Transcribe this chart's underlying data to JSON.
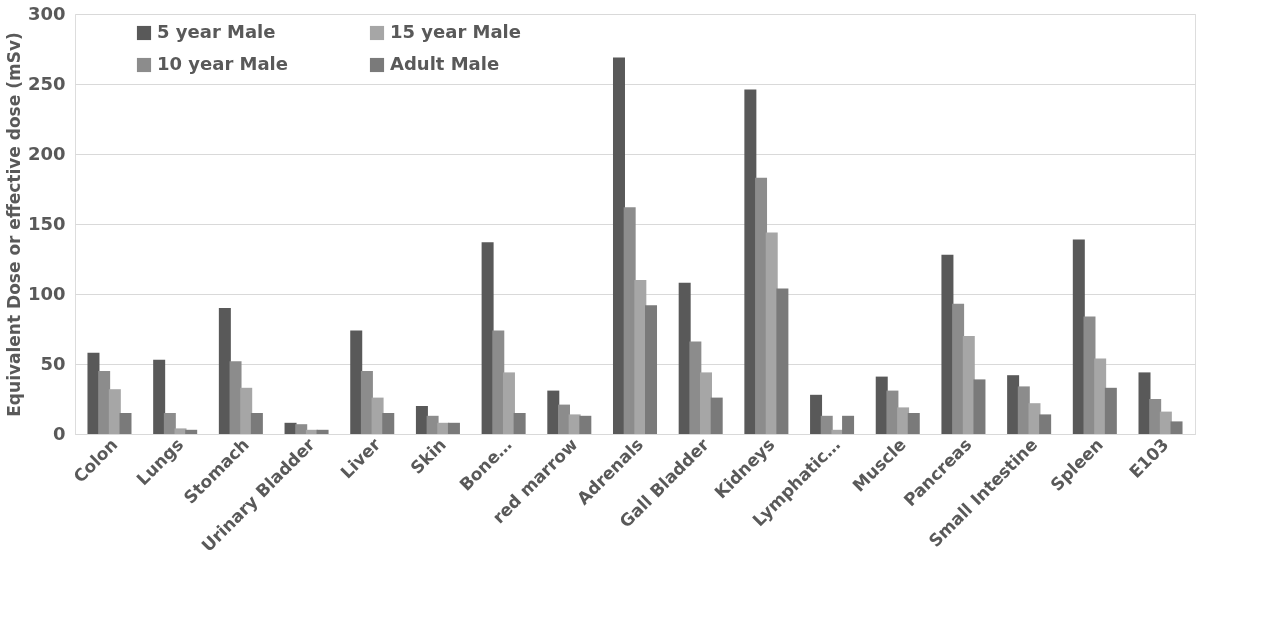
{
  "chart_data": {
    "type": "bar",
    "ylabel": "Equivalent Dose or effective dose (mSv)",
    "categories": [
      "Colon",
      "Lungs",
      "Stomach",
      "Urinary Bladder",
      "Liver",
      "Skin",
      "Bone…",
      "red marrow",
      "Adrenals",
      "Gall Bladder",
      "Kidneys",
      "Lymphatic…",
      "Muscle",
      "Pancreas",
      "Small Intestine",
      "Spleen",
      "E103"
    ],
    "series": [
      {
        "name": "5 year Male",
        "color": "#595959",
        "values": [
          58,
          53,
          90,
          8,
          74,
          20,
          137,
          31,
          269,
          108,
          246,
          28,
          41,
          128,
          42,
          139,
          44
        ]
      },
      {
        "name": "10 year Male",
        "color": "#8c8c8c",
        "values": [
          45,
          15,
          52,
          7,
          45,
          13,
          74,
          21,
          162,
          66,
          183,
          13,
          31,
          93,
          34,
          84,
          25
        ]
      },
      {
        "name": "15 year Male",
        "color": "#a6a6a6",
        "values": [
          32,
          4,
          33,
          3,
          26,
          8,
          44,
          14,
          110,
          44,
          144,
          3,
          19,
          70,
          22,
          54,
          16
        ]
      },
      {
        "name": "Adult Male",
        "color": "#7a7a7a",
        "values": [
          15,
          3,
          15,
          3,
          15,
          8,
          15,
          13,
          92,
          26,
          104,
          13,
          15,
          39,
          14,
          33,
          9
        ]
      }
    ],
    "ylim": [
      0,
      300
    ],
    "yticks": [
      0,
      50,
      100,
      150,
      200,
      250,
      300
    ],
    "grid": "y",
    "legend": "top left"
  }
}
